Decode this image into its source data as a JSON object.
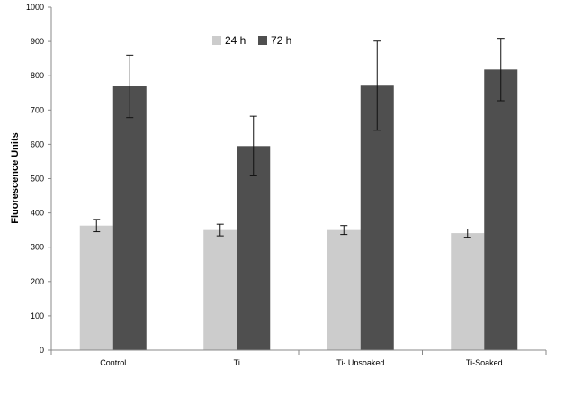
{
  "chart_data": {
    "type": "bar",
    "ylabel": "Fluorescence Units",
    "xlabel": "",
    "ylim": [
      0,
      1000
    ],
    "yticks": [
      0,
      100,
      200,
      300,
      400,
      500,
      600,
      700,
      800,
      900,
      1000
    ],
    "grid": false,
    "legend_position": "top-center",
    "categories": [
      "Control",
      "Ti",
      "Ti- Unsoaked",
      "Ti-Soaked"
    ],
    "series": [
      {
        "name": "24 h",
        "color": "#cccccc",
        "values": [
          363,
          350,
          350,
          341
        ],
        "errors": [
          18,
          17,
          13,
          12
        ]
      },
      {
        "name": "72 h",
        "color": "#4f4f4f",
        "values": [
          769,
          595,
          771,
          818
        ],
        "errors": [
          91,
          87,
          130,
          91
        ]
      }
    ]
  }
}
